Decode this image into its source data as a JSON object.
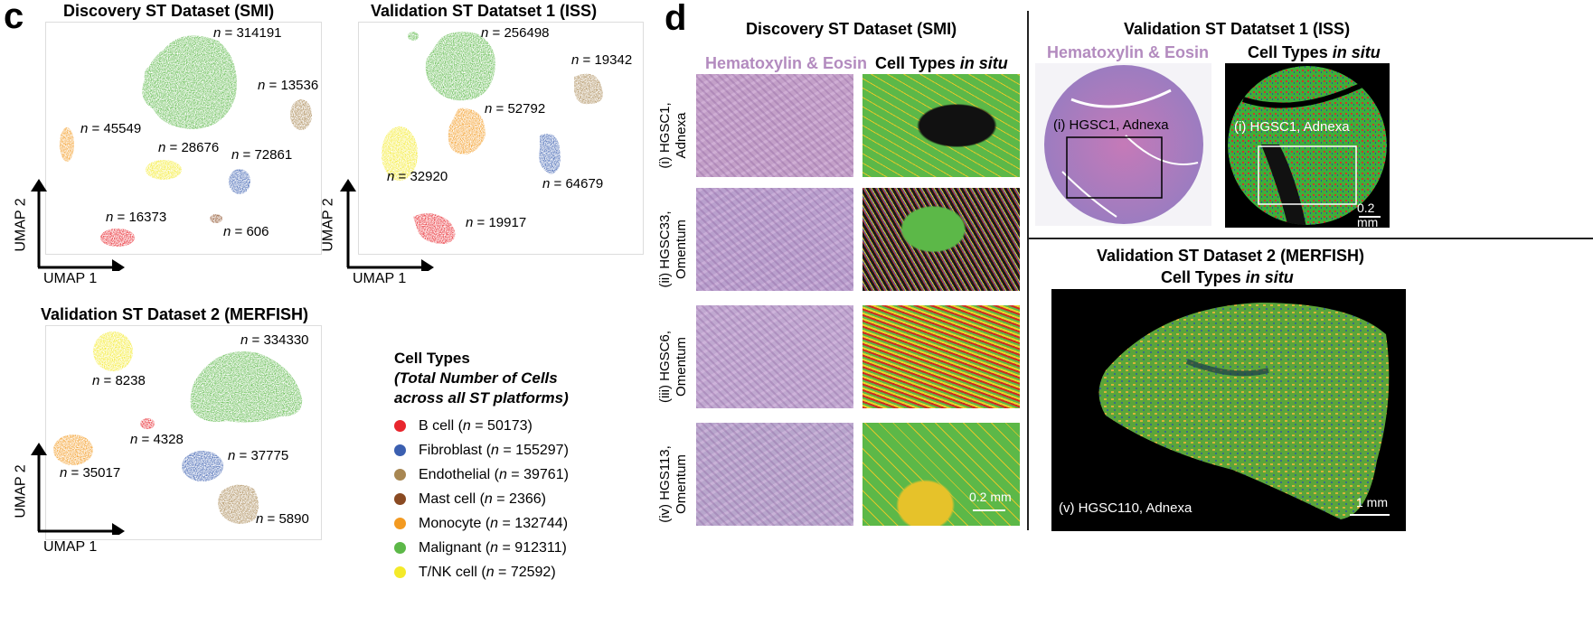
{
  "panel_c": {
    "label": "c",
    "smi": {
      "title": "Discovery ST Dataset (SMI)",
      "n": [
        "314191",
        "13536",
        "45549",
        "28676",
        "72861",
        "16373",
        "606"
      ]
    },
    "iss": {
      "title": "Validation ST Datatset 1 (ISS)",
      "n": [
        "256498",
        "19342",
        "52792",
        "32920",
        "64679",
        "19917"
      ]
    },
    "merfish": {
      "title": "Validation ST Dataset 2 (MERFISH)",
      "n": [
        "334330",
        "8238",
        "4328",
        "37775",
        "35017",
        "5890"
      ]
    },
    "axes": {
      "x": "UMAP 1",
      "y": "UMAP 2"
    },
    "n_prefix": "n",
    "n_eq": " = "
  },
  "legend": {
    "title_line1": "Cell Types",
    "title_line2": "(Total Number of Cells",
    "title_line3": "across all ST platforms)",
    "items": [
      {
        "name": "B cell",
        "n": "50173",
        "color": "#e8262d"
      },
      {
        "name": "Fibroblast",
        "n": "155297",
        "color": "#3b5fb0"
      },
      {
        "name": "Endothelial",
        "n": "39761",
        "color": "#a88752"
      },
      {
        "name": "Mast cell",
        "n": "2366",
        "color": "#8a4a22"
      },
      {
        "name": "Monocyte",
        "n": "132744",
        "color": "#f39a21"
      },
      {
        "name": "Malignant",
        "n": "912311",
        "color": "#5cb848"
      },
      {
        "name": "T/NK cell",
        "n": "72592",
        "color": "#f4ea2a"
      }
    ]
  },
  "panel_d": {
    "label": "d",
    "smi_title": "Discovery ST Dataset (SMI)",
    "he": "Hematoxylin & Eosin",
    "ct_pre": "Cell Types ",
    "ct_it": "in situ",
    "rows": [
      {
        "l1": "(i) HGSC1,",
        "l2": "Adnexa"
      },
      {
        "l1": "(ii) HGSC33,",
        "l2": "Omentum"
      },
      {
        "l1": "(iii) HGSC6,",
        "l2": "Omentum"
      },
      {
        "l1": "(iv) HGS113,",
        "l2": "Omentum"
      }
    ],
    "scale_smi": "0.2 mm",
    "iss_title": "Validation ST Datatset 1 (ISS)",
    "iss_he_caption": "(i) HGSC1, Adnexa",
    "iss_ct_caption": "(i) HGSC1, Adnexa",
    "scale_iss": "0.2 mm",
    "merfish_title": "Validation ST Dataset 2 (MERFISH)",
    "merfish_caption": "(v) HGSC110, Adnexa",
    "scale_merfish": "1 mm"
  },
  "colors": {
    "he_pink": "#b38bbf",
    "malignant": "#5cb848"
  }
}
